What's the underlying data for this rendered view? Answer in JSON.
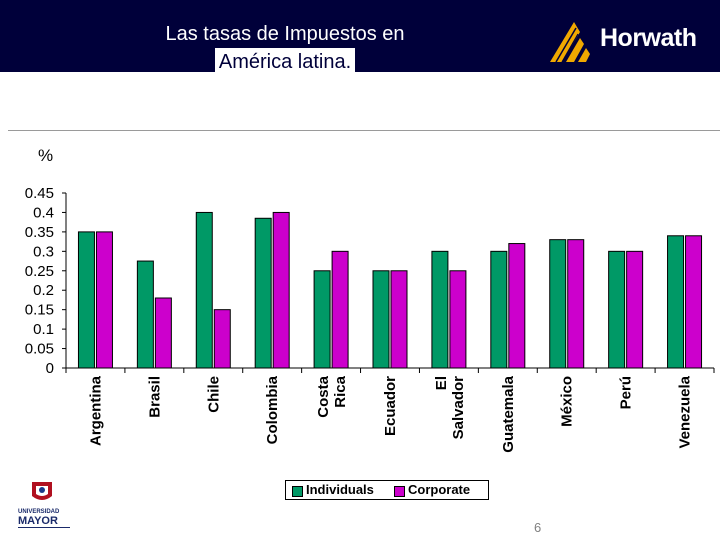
{
  "header": {
    "title_line1": "Las tasas de Impuestos en",
    "title_line2": "América latina.",
    "logo_text": "Horwath"
  },
  "unit_label": "%",
  "page_number": "6",
  "university_logo": {
    "line1": "UNIVERSIDAD",
    "line2": "MAYOR"
  },
  "colors": {
    "individuals": "#009966",
    "corporate": "#cc00cc",
    "header_bg": "#00003a",
    "logo_gold": "#f0a800"
  },
  "chart_data": {
    "type": "bar",
    "categories": [
      "Argentina",
      "Brasil",
      "Chile",
      "Colombia",
      "Costa Rica",
      "Ecuador",
      "El Salvador",
      "Guatemala",
      "México",
      "Perú",
      "Venezuela"
    ],
    "series": [
      {
        "name": "Individuals",
        "values": [
          0.35,
          0.275,
          0.4,
          0.385,
          0.25,
          0.25,
          0.3,
          0.3,
          0.33,
          0.3,
          0.34
        ]
      },
      {
        "name": "Corporate",
        "values": [
          0.35,
          0.18,
          0.15,
          0.4,
          0.3,
          0.25,
          0.25,
          0.32,
          0.33,
          0.3,
          0.34
        ]
      }
    ],
    "ylim": [
      0,
      0.45
    ],
    "yticks": [
      "0.45",
      "0.4",
      "0.35",
      "0.3",
      "0.25",
      "0.2",
      "0.15",
      "0.1",
      "0.05",
      "0"
    ],
    "legend": "bottom",
    "grid": false
  }
}
